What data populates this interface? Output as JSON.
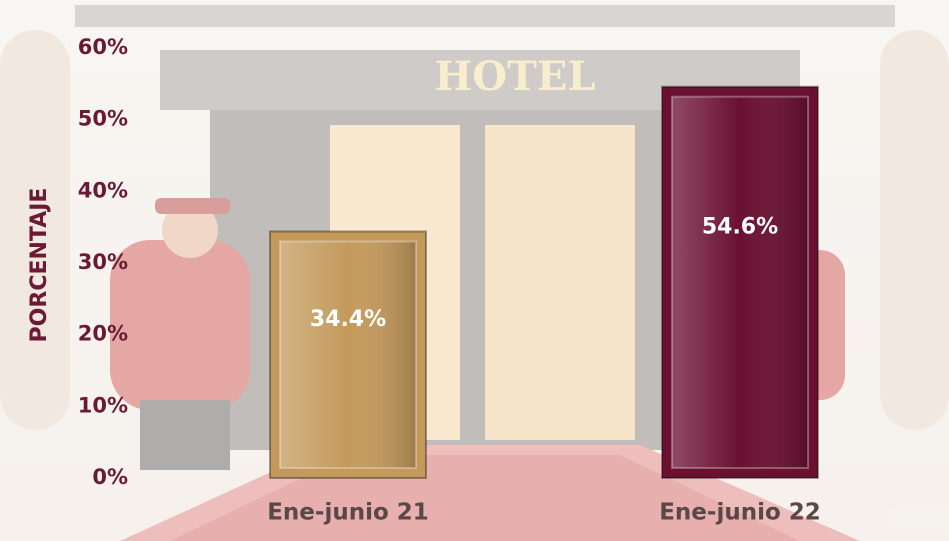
{
  "background_sign": "HOTEL",
  "chart_data": {
    "type": "bar",
    "y_axis_label": "PORCENTAJE",
    "categories": [
      "Ene-junio 21",
      "Ene-junio 22"
    ],
    "values": [
      34.4,
      54.6
    ],
    "value_labels": [
      "34.4%",
      "54.6%"
    ],
    "colors": [
      "#c49a5c",
      "#6a1030"
    ],
    "ylim": [
      0,
      60
    ],
    "yticks": [
      {
        "value": 0,
        "label": "0%"
      },
      {
        "value": 10,
        "label": "10%"
      },
      {
        "value": 20,
        "label": "20%"
      },
      {
        "value": 30,
        "label": "30%"
      },
      {
        "value": 40,
        "label": "40%"
      },
      {
        "value": 50,
        "label": "50%"
      },
      {
        "value": 60,
        "label": "60%"
      }
    ],
    "grid": false
  }
}
